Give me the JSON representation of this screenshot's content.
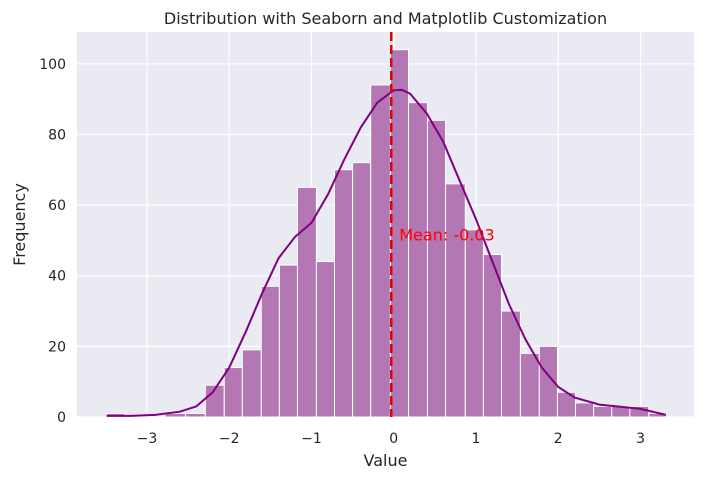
{
  "chart_data": {
    "type": "bar",
    "subtype": "histogram",
    "title": "Distribution with Seaborn and Matplotlib Customization",
    "xlabel": "Value",
    "ylabel": "Frequency",
    "xlim": [
      -3.85,
      3.65
    ],
    "ylim": [
      0,
      109
    ],
    "xticks": [
      -3,
      -2,
      -1,
      0,
      1,
      2,
      3
    ],
    "xtick_labels": [
      "−3",
      "−2",
      "−1",
      "0",
      "1",
      "2",
      "3"
    ],
    "yticks": [
      0,
      20,
      40,
      60,
      80,
      100
    ],
    "ytick_labels": [
      "0",
      "20",
      "40",
      "60",
      "80",
      "100"
    ],
    "grid": true,
    "style": "seaborn-darkgrid",
    "bins": {
      "edges": [
        -3.49,
        -3.27,
        -3.03,
        -2.78,
        -2.53,
        -2.29,
        -2.06,
        -1.84,
        -1.61,
        -1.39,
        -1.17,
        -0.94,
        -0.72,
        -0.5,
        -0.28,
        -0.04,
        0.18,
        0.41,
        0.63,
        0.87,
        1.09,
        1.31,
        1.54,
        1.77,
        1.99,
        2.21,
        2.43,
        2.65,
        2.87,
        3.1,
        3.31
      ],
      "counts": [
        1,
        0,
        0,
        1,
        1,
        9,
        14,
        19,
        37,
        43,
        65,
        44,
        70,
        72,
        94,
        104,
        89,
        84,
        66,
        53,
        46,
        30,
        18,
        20,
        7,
        4,
        3,
        3,
        3,
        1
      ]
    },
    "kde": {
      "x": [
        -3.49,
        -3.2,
        -2.9,
        -2.6,
        -2.4,
        -2.2,
        -2.0,
        -1.8,
        -1.6,
        -1.4,
        -1.2,
        -1.0,
        -0.8,
        -0.6,
        -0.4,
        -0.2,
        0.0,
        0.1,
        0.2,
        0.4,
        0.6,
        0.8,
        1.0,
        1.2,
        1.4,
        1.6,
        1.8,
        2.0,
        2.2,
        2.5,
        2.8,
        3.0,
        3.31
      ],
      "y": [
        0.3,
        0.3,
        0.6,
        1.5,
        3,
        7,
        14,
        24,
        35,
        45,
        51,
        55,
        63,
        73,
        82,
        89,
        92.5,
        92.6,
        91.5,
        86,
        78,
        67,
        56,
        44,
        32,
        22,
        14,
        8.5,
        5.5,
        3.5,
        2.8,
        2.3,
        0.6
      ]
    },
    "mean": -0.03,
    "mean_label": "Mean: -0.03",
    "colors": {
      "bar_fill": "#b377b3",
      "bar_stroke": "#ffffff",
      "kde_line": "#800080",
      "mean_line": "#e00000",
      "annotation": "#ff0000",
      "plot_bg": "#eaeaf2",
      "grid": "#ffffff"
    }
  }
}
